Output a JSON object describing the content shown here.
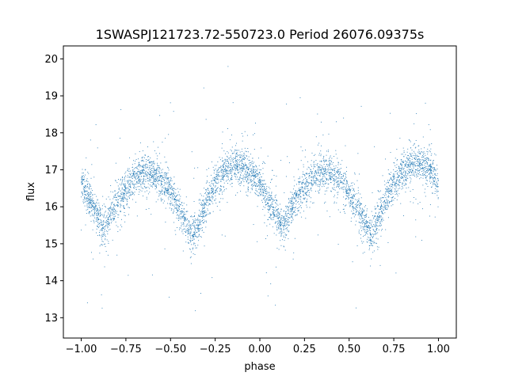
{
  "chart_data": {
    "type": "scatter",
    "title": "1SWASPJ121723.72-550723.0 Period 26076.09375s",
    "xlabel": "phase",
    "ylabel": "flux",
    "xlim": [
      -1.1,
      1.1
    ],
    "ylim": [
      12.45,
      20.35
    ],
    "xticks": [
      -1.0,
      -0.75,
      -0.5,
      -0.25,
      0.0,
      0.25,
      0.5,
      0.75,
      1.0
    ],
    "xtick_labels": [
      "−1.00",
      "−0.75",
      "−0.50",
      "−0.25",
      "0.00",
      "0.25",
      "0.50",
      "0.75",
      "1.00"
    ],
    "yticks": [
      13,
      14,
      15,
      16,
      17,
      18,
      19,
      20
    ],
    "ytick_labels": [
      "13",
      "14",
      "15",
      "16",
      "17",
      "18",
      "19",
      "20"
    ],
    "grid": false,
    "point_color": "#1f77b4",
    "series": [
      {
        "x": [
          -1.0,
          -0.95,
          -0.9,
          -0.875,
          -0.85,
          -0.8,
          -0.75,
          -0.7,
          -0.65,
          -0.6,
          -0.55,
          -0.5,
          -0.45,
          -0.4,
          -0.375,
          -0.35,
          -0.3,
          -0.25,
          -0.2,
          -0.15,
          -0.1,
          -0.05,
          0.0,
          0.05,
          0.1,
          0.125,
          0.15,
          0.2,
          0.25,
          0.3,
          0.35,
          0.4,
          0.45,
          0.5,
          0.55,
          0.6,
          0.625,
          0.65,
          0.7,
          0.75,
          0.8,
          0.85,
          0.9,
          0.95,
          1.0
        ],
        "y": [
          16.6,
          16.2,
          15.7,
          15.45,
          15.6,
          16.1,
          16.5,
          16.8,
          16.95,
          16.9,
          16.7,
          16.4,
          15.9,
          15.4,
          15.25,
          15.5,
          16.1,
          16.6,
          16.95,
          17.15,
          17.1,
          16.9,
          16.6,
          16.1,
          15.7,
          15.45,
          15.6,
          16.2,
          16.6,
          16.85,
          16.95,
          16.9,
          16.7,
          16.3,
          15.9,
          15.4,
          15.2,
          15.5,
          16.1,
          16.6,
          16.95,
          17.15,
          17.2,
          17.05,
          16.6
        ]
      }
    ]
  }
}
